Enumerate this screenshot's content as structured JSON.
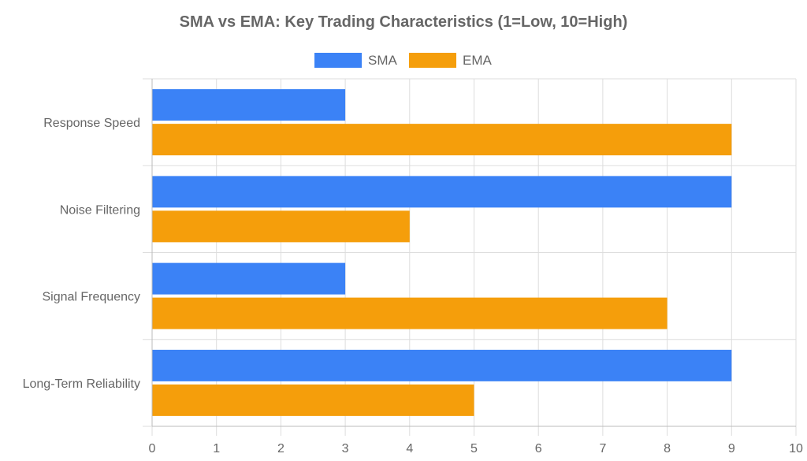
{
  "chart_data": {
    "type": "bar",
    "orientation": "horizontal",
    "title": "SMA vs EMA: Key Trading Characteristics (1=Low, 10=High)",
    "xlabel": "",
    "ylabel": "",
    "categories": [
      "Response Speed",
      "Noise Filtering",
      "Signal Frequency",
      "Long-Term Reliability"
    ],
    "series": [
      {
        "name": "SMA",
        "color": "#3b82f6",
        "values": [
          3,
          9,
          3,
          9
        ]
      },
      {
        "name": "EMA",
        "color": "#f59e0b",
        "values": [
          9,
          4,
          8,
          5
        ]
      }
    ],
    "xlim": [
      0,
      10
    ],
    "x_ticks": [
      "0",
      "1",
      "2",
      "3",
      "4",
      "5",
      "6",
      "7",
      "8",
      "9",
      "10"
    ],
    "grid": true,
    "legend_position": "top"
  }
}
